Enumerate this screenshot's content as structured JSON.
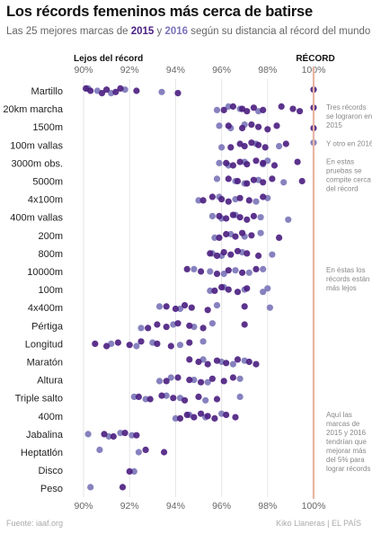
{
  "title": "Los récords femeninos más cerca de batirse",
  "subtitle": {
    "before": "Las 25 mejores marcas de ",
    "year_2015": "2015",
    "middle": " y ",
    "year_2016": "2016",
    "after": " según su distancia al récord del mundo"
  },
  "source": "Fuente: iaaf.org",
  "credit": "Kiko Llaneras  |  EL PAÍS",
  "colors": {
    "y2015": "#4a1d80",
    "y2016": "#7a74b8",
    "record_line": "#e8b4a4",
    "grid": "#e6e6e6",
    "background": "#ffffff"
  },
  "chart_data": {
    "type": "scatter",
    "title": "Los récords femeninos más cerca de batirse",
    "xlabel": "",
    "ylabel": "",
    "xlim": [
      90,
      100
    ],
    "x_ticks": [
      "90%",
      "92%",
      "94%",
      "96%",
      "98%",
      "100%"
    ],
    "x_tick_values": [
      90,
      92,
      94,
      96,
      98,
      100
    ],
    "axis_label_left": "Lejos del récord",
    "axis_label_right": "RÉCORD",
    "grid": true,
    "legend": "subtitle",
    "series_colors": {
      "2015": "#4a1d80",
      "2016": "#7a74b8"
    },
    "categories": [
      "Martillo",
      "20km marcha",
      "1500m",
      "100m vallas",
      "3000m obs.",
      "5000m",
      "4x100m",
      "400m vallas",
      "200m",
      "800m",
      "10000m",
      "100m",
      "4x400m",
      "Pértiga",
      "Longitud",
      "Maratón",
      "Altura",
      "Triple salto",
      "400m",
      "Jabalina",
      "Heptatlón",
      "Disco",
      "Peso"
    ],
    "series": [
      {
        "name": "2015",
        "points": {
          "Martillo": [
            90.1,
            90.3,
            90.8,
            91.0,
            91.4,
            91.6,
            92.3,
            94.1,
            100.0
          ],
          "20km marcha": [
            96.1,
            96.5,
            96.9,
            97.1,
            97.4,
            97.8,
            98.6,
            99.1,
            99.4,
            100.0
          ],
          "1500m": [
            96.3,
            96.9,
            97.3,
            97.6,
            98.0,
            98.4,
            100.0
          ],
          "100m vallas": [
            96.4,
            96.8,
            97.0,
            97.3,
            97.6,
            97.9,
            98.8
          ],
          "3000m obs.": [
            96.2,
            96.5,
            96.8,
            97.1,
            97.5,
            97.8,
            98.3,
            99.3
          ],
          "5000m": [
            96.3,
            96.7,
            97.1,
            97.4,
            97.8,
            98.2,
            99.5
          ],
          "4x100m": [
            95.2,
            95.6,
            96.0,
            96.3,
            96.8,
            97.2,
            97.8
          ],
          "400m vallas": [
            95.9,
            96.2,
            96.5,
            96.8,
            97.1,
            97.4
          ],
          "200m": [
            95.9,
            96.2,
            96.6,
            96.9,
            97.3,
            98.5
          ],
          "800m": [
            95.5,
            95.8,
            96.1,
            96.4,
            96.7,
            97.1,
            97.6
          ],
          "10000m": [
            94.5,
            95.1,
            95.8,
            96.3,
            96.9,
            97.5
          ],
          "100m": [
            95.7,
            96.0,
            96.3,
            96.7,
            97.1
          ],
          "4x400m": [
            93.6,
            94.0,
            94.4,
            94.7,
            95.4,
            97.0
          ],
          "Pértiga": [
            92.8,
            93.2,
            93.6,
            94.1,
            94.6,
            95.2,
            97.0
          ],
          "Longitud": [
            90.5,
            91.0,
            91.5,
            92.0,
            92.5,
            93.2,
            93.8,
            94.6
          ],
          "Maratón": [
            94.6,
            95.0,
            95.4,
            95.8,
            96.2,
            96.7,
            97.2,
            97.5
          ],
          "Altura": [
            93.6,
            94.1,
            94.6,
            95.1,
            95.6,
            96.1,
            96.5
          ],
          "Triple salto": [
            92.4,
            92.9,
            93.4,
            93.9,
            94.4,
            95.0,
            95.8
          ],
          "400m": [
            94.2,
            94.5,
            94.8,
            95.1,
            95.4,
            95.7,
            96.2,
            96.6
          ],
          "Jabalina": [
            90.9,
            91.3,
            91.8,
            92.3
          ],
          "Heptatlón": [
            92.7,
            93.5
          ],
          "Disco": [
            92.0
          ],
          "Peso": [
            91.7
          ]
        }
      },
      {
        "name": "2016",
        "points": {
          "Martillo": [
            90.2,
            90.6,
            91.2,
            91.8,
            93.4
          ],
          "20km marcha": [
            95.8,
            96.3,
            96.8,
            97.6
          ],
          "1500m": [
            95.9,
            96.4,
            97.0
          ],
          "100m vallas": [
            96.0,
            97.5,
            98.5,
            100.0
          ],
          "3000m obs.": [
            95.9,
            96.3,
            97.0,
            97.8,
            98.0
          ],
          "5000m": [
            95.8,
            96.6,
            97.0,
            97.6,
            98.7
          ],
          "4x100m": [
            95.0,
            95.9,
            96.6,
            97.5,
            98.0
          ],
          "400m vallas": [
            95.6,
            96.0,
            96.6,
            97.7,
            98.9
          ],
          "200m": [
            95.7,
            96.4,
            97.0,
            97.7
          ],
          "800m": [
            95.6,
            96.0,
            96.9,
            98.2
          ],
          "10000m": [
            94.8,
            95.5,
            96.1,
            96.6,
            97.2,
            97.8
          ],
          "100m": [
            95.5,
            96.1,
            97.0,
            97.8,
            98.0
          ],
          "4x400m": [
            93.3,
            94.2,
            95.8,
            98.1
          ],
          "Pértiga": [
            92.5,
            93.9,
            94.8,
            95.6
          ],
          "Longitud": [
            91.2,
            92.3,
            93.0,
            94.2,
            95.2
          ],
          "Maratón": [
            95.2,
            96.0,
            96.5,
            97.0
          ],
          "Altura": [
            93.3,
            93.8,
            94.8,
            95.4,
            96.8
          ],
          "Triple salto": [
            92.2,
            92.7,
            93.6,
            94.2,
            95.3,
            96.8
          ],
          "400m": [
            94.0,
            94.6,
            95.3,
            96.0
          ],
          "Jabalina": [
            90.2,
            91.1,
            91.6,
            92.1
          ],
          "Heptatlón": [
            90.7,
            92.4
          ],
          "Disco": [
            92.2
          ],
          "Peso": [
            90.3
          ]
        }
      }
    ],
    "annotations": [
      {
        "category": "20km marcha",
        "text": [
          "Tres récords",
          "se lograron en",
          "2015"
        ]
      },
      {
        "category": "100m vallas",
        "text": [
          "Y otro en 2016"
        ]
      },
      {
        "category": "3000m obs.",
        "text": [
          "En estas",
          "pruebas se",
          "compite cerca",
          "del récord"
        ]
      },
      {
        "category": "10000m",
        "text": [
          "En éstas los",
          "récords están",
          "más lejos"
        ]
      },
      {
        "category": "400m",
        "text": [
          "Aquí las",
          "marcas de",
          "2015 y 2016",
          "tendrían que",
          "mejorar más",
          "del 5% para",
          "lograr récords"
        ]
      }
    ]
  }
}
